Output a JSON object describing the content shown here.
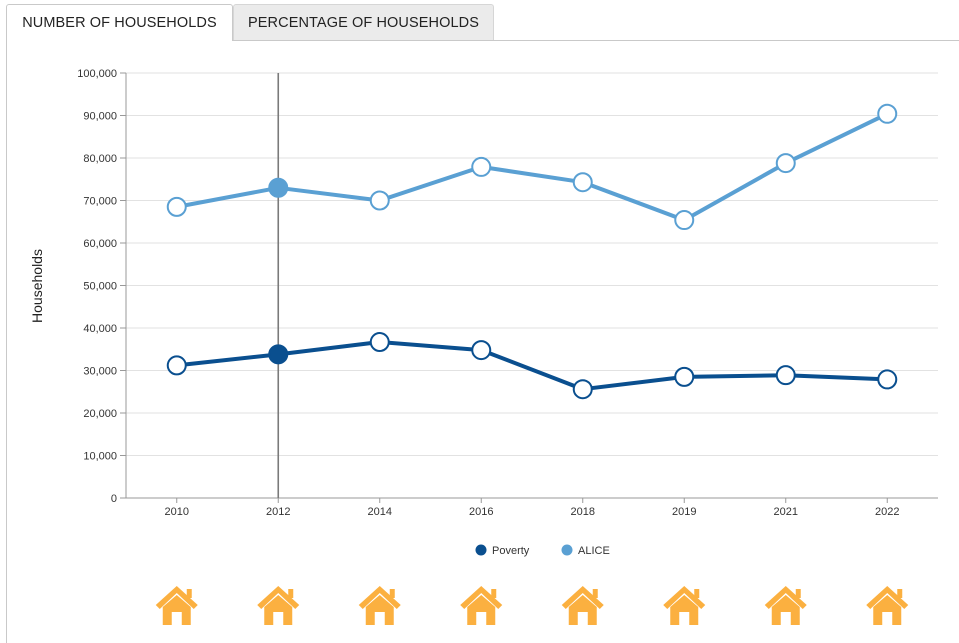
{
  "tabs": [
    {
      "label": "NUMBER OF HOUSEHOLDS",
      "active": true
    },
    {
      "label": "PERCENTAGE OF HOUSEHOLDS",
      "active": false
    }
  ],
  "chart_data": {
    "type": "line",
    "title": "",
    "xlabel": "",
    "ylabel": "Households",
    "categories": [
      "2010",
      "2012",
      "2014",
      "2016",
      "2018",
      "2019",
      "2021",
      "2022"
    ],
    "ylim": [
      0,
      100000
    ],
    "yticks": [
      0,
      10000,
      20000,
      30000,
      40000,
      50000,
      60000,
      70000,
      80000,
      90000,
      100000
    ],
    "ytick_labels": [
      "0",
      "10,000",
      "20,000",
      "30,000",
      "40,000",
      "50,000",
      "60,000",
      "70,000",
      "80,000",
      "90,000",
      "100,000"
    ],
    "grid": true,
    "legend_position": "bottom",
    "highlighted_category": "2012",
    "series": [
      {
        "name": "Poverty",
        "color": "#0a4f8f",
        "values": [
          31200,
          33800,
          36700,
          34800,
          25600,
          28500,
          28900,
          27900
        ]
      },
      {
        "name": "ALICE",
        "color": "#5aa0d3",
        "values": [
          68500,
          73000,
          70000,
          77900,
          74300,
          65400,
          78800,
          90400
        ]
      }
    ],
    "icons": [
      {
        "category": "2010",
        "icon": "house-icon",
        "color": "#fbb040"
      },
      {
        "category": "2012",
        "icon": "house-icon",
        "color": "#fbb040"
      },
      {
        "category": "2014",
        "icon": "house-icon",
        "color": "#fbb040"
      },
      {
        "category": "2016",
        "icon": "house-icon",
        "color": "#fbb040"
      },
      {
        "category": "2018",
        "icon": "house-icon",
        "color": "#fbb040"
      },
      {
        "category": "2019",
        "icon": "house-icon",
        "color": "#fbb040"
      },
      {
        "category": "2021",
        "icon": "house-icon",
        "color": "#fbb040"
      },
      {
        "category": "2022",
        "icon": "house-icon",
        "color": "#fbb040"
      }
    ]
  }
}
